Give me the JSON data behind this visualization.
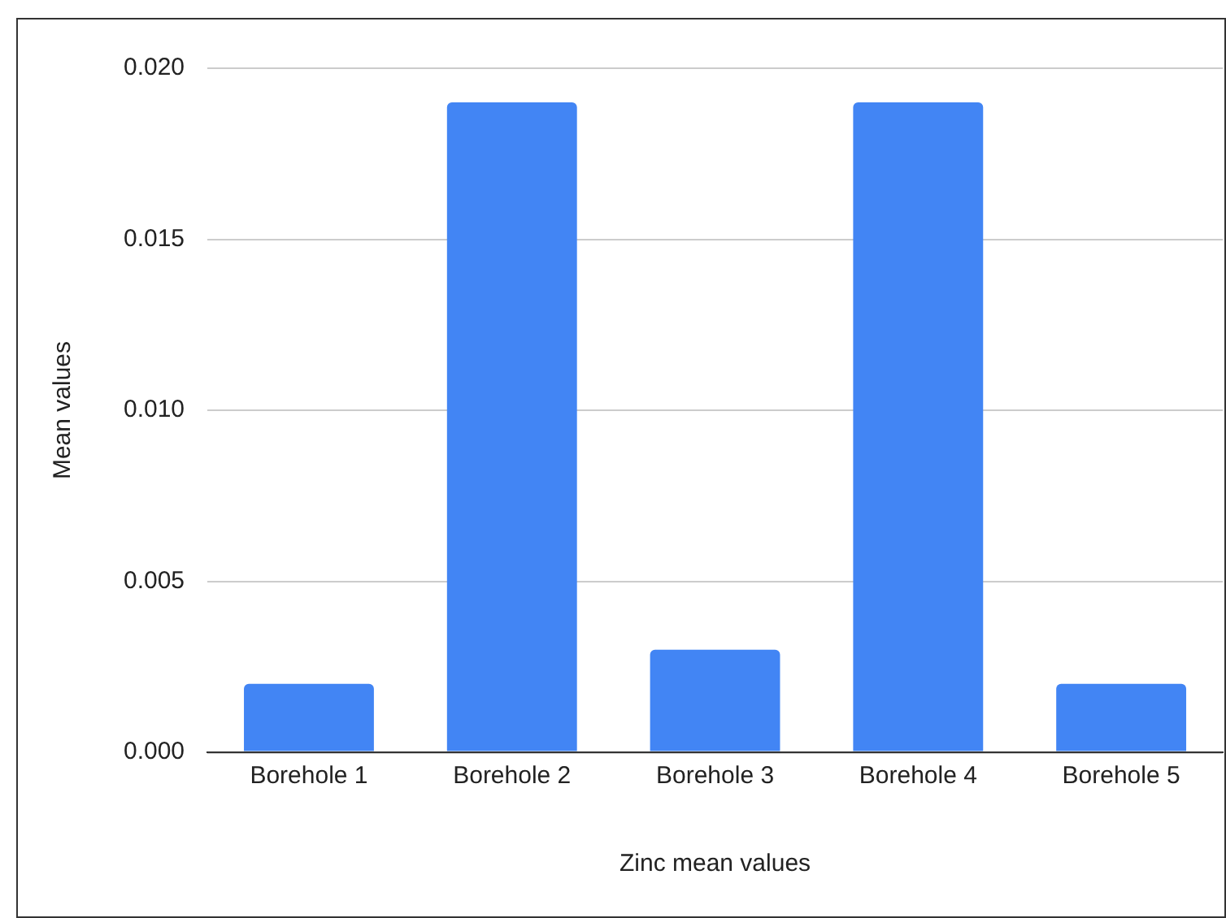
{
  "chart_data": {
    "type": "bar",
    "xlabel": "Zinc mean values",
    "ylabel": "Mean values",
    "categories": [
      "Borehole 1",
      "Borehole 2",
      "Borehole 3",
      "Borehole 4",
      "Borehole 5"
    ],
    "values": [
      0.002,
      0.019,
      0.003,
      0.019,
      0.002
    ],
    "color": "#4285f4",
    "ylim": [
      0,
      0.02
    ],
    "yticks": [
      {
        "value": 0,
        "label": "0.000"
      },
      {
        "value": 0.005,
        "label": "0.005"
      },
      {
        "value": 0.01,
        "label": "0.010"
      },
      {
        "value": 0.015,
        "label": "0.015"
      },
      {
        "value": 0.02,
        "label": "0.020"
      }
    ],
    "grid": "y",
    "legend": false
  }
}
